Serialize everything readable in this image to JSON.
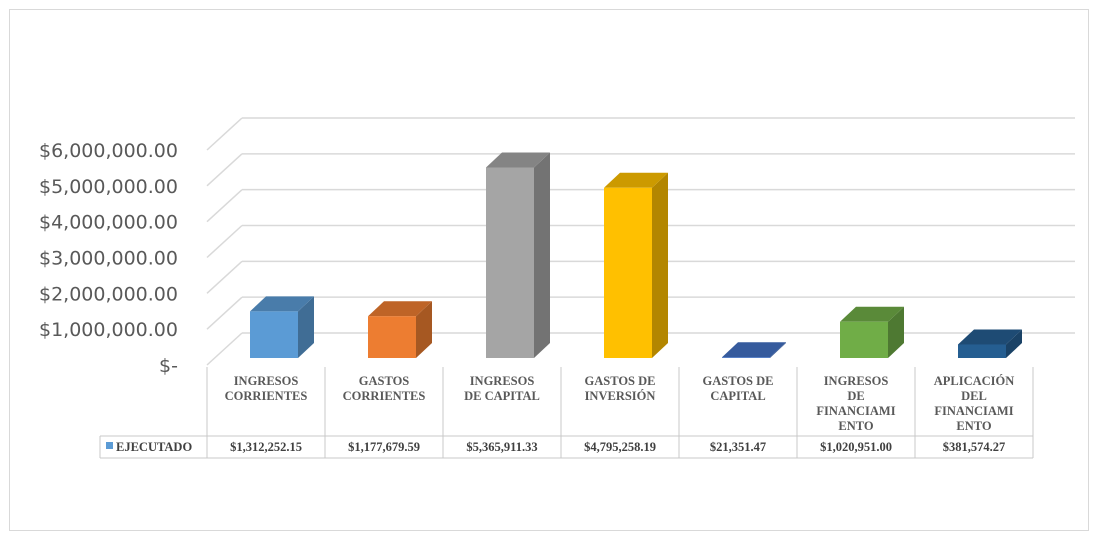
{
  "chart_data": {
    "type": "bar",
    "categories": [
      "INGRESOS CORRIENTES",
      "GASTOS CORRIENTES",
      "INGRESOS DE CAPITAL",
      "GASTOS DE INVERSIÓN",
      "GASTOS DE CAPITAL",
      "INGRESOS DE FINANCIAMIENTO",
      "APLICACIÓN DEL FINANCIAMIENTO"
    ],
    "category_lines": [
      [
        "INGRESOS",
        "CORRIENTES"
      ],
      [
        "GASTOS",
        "CORRIENTES"
      ],
      [
        "INGRESOS",
        "DE CAPITAL"
      ],
      [
        "GASTOS DE",
        "INVERSIÓN"
      ],
      [
        "GASTOS DE",
        "CAPITAL"
      ],
      [
        "INGRESOS",
        "DE",
        "FINANCIAMI",
        "ENTO"
      ],
      [
        "APLICACIÓN",
        "DEL",
        "FINANCIAMI",
        "ENTO"
      ]
    ],
    "series": [
      {
        "name": "EJECUTADO",
        "values": [
          1312252.15,
          1177679.59,
          5365911.33,
          4795258.19,
          21351.47,
          1020951.0,
          381574.27
        ],
        "labels": [
          "$1,312,252.15",
          "$1,177,679.59",
          "$5,365,911.33",
          "$4,795,258.19",
          "$21,351.47",
          "$1,020,951.00",
          "$381,574.27"
        ]
      }
    ],
    "bar_colors": [
      "#5b9bd5",
      "#ed7d31",
      "#a5a5a5",
      "#ffc000",
      "#4472c4",
      "#70ad47",
      "#255e91"
    ],
    "legend_color": "#5b9bd5",
    "ylim": [
      0,
      6000000
    ],
    "yticks": [
      0,
      1000000,
      2000000,
      3000000,
      4000000,
      5000000,
      6000000
    ],
    "ytick_labels": [
      "$-",
      "$1,000,000.00",
      "$2,000,000.00",
      "$3,000,000.00",
      "$4,000,000.00",
      "$5,000,000.00",
      "$6,000,000.00"
    ],
    "grid": true,
    "style": "3d-column",
    "legend": "data-table"
  }
}
